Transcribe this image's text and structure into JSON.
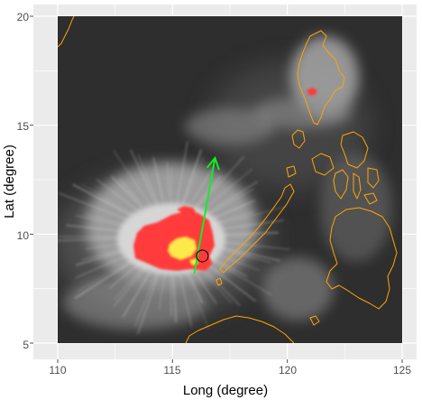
{
  "map": {
    "x_axis": {
      "title": "Long (degree)",
      "range": [
        108.8,
        125.3
      ],
      "ticks": [
        "110",
        "115",
        "120",
        "125"
      ]
    },
    "y_axis": {
      "title": "Lat (degree)",
      "range": [
        4.4,
        20.4
      ],
      "ticks": [
        "5",
        "10",
        "15",
        "20"
      ]
    },
    "panel_background": "#ebebeb",
    "grid_color": "#ffffff",
    "image_extent": {
      "lon": [
        110,
        125
      ],
      "lat": [
        5,
        20
      ]
    },
    "layers": {
      "satellite_infrared": {
        "colors": [
          "#2e2e2e",
          "#c8c8c8"
        ]
      },
      "cold_cloud_tops_red": {
        "color": "#ff3b3b"
      },
      "coldest_core_yellow": {
        "color": "#ffe84a"
      },
      "coastlines": {
        "color": "#ffa500"
      },
      "motion_vector": {
        "color": "#11ee22",
        "from": [
          115.95,
          8.2
        ],
        "to": [
          116.85,
          13.5
        ]
      },
      "storm_center_marker": {
        "lon": 116.3,
        "lat": 9.0
      }
    }
  }
}
